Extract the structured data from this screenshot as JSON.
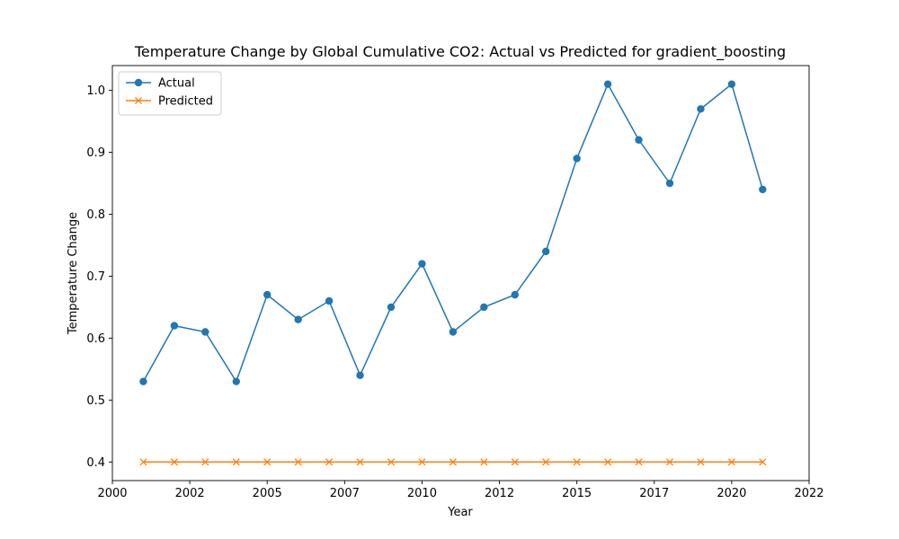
{
  "chart_data": {
    "type": "line",
    "title": "Temperature Change by Global Cumulative CO2: Actual vs Predicted for gradient_boosting",
    "xlabel": "Year",
    "ylabel": "Temperature Change",
    "xlim": [
      2000.0,
      2022.5
    ],
    "ylim": [
      0.37,
      1.04
    ],
    "x_ticks": [
      2000,
      2002.5,
      2005,
      2007.5,
      2010,
      2012.5,
      2015,
      2017.5,
      2020,
      2022.5
    ],
    "x_tick_labels": [
      "2000",
      "2002",
      "2005",
      "2007",
      "2010",
      "2012",
      "2015",
      "2017",
      "2020",
      "2022"
    ],
    "y_ticks": [
      0.4,
      0.5,
      0.6,
      0.7,
      0.8,
      0.9,
      1.0
    ],
    "y_tick_labels": [
      "0.4",
      "0.5",
      "0.6",
      "0.7",
      "0.8",
      "0.9",
      "1.0"
    ],
    "grid": false,
    "legend_position": "top-left",
    "x": [
      2001,
      2002,
      2003,
      2004,
      2005,
      2006,
      2007,
      2008,
      2009,
      2010,
      2011,
      2012,
      2013,
      2014,
      2015,
      2016,
      2017,
      2018,
      2019,
      2020,
      2021
    ],
    "series": [
      {
        "name": "Actual",
        "color": "#1f77b4",
        "marker": "circle",
        "values": [
          0.53,
          0.62,
          0.61,
          0.53,
          0.67,
          0.63,
          0.66,
          0.54,
          0.65,
          0.72,
          0.61,
          0.65,
          0.67,
          0.74,
          0.89,
          1.01,
          0.92,
          0.85,
          0.97,
          1.01,
          0.84
        ]
      },
      {
        "name": "Predicted",
        "color": "#ff7f0e",
        "marker": "x",
        "values": [
          0.4,
          0.4,
          0.4,
          0.4,
          0.4,
          0.4,
          0.4,
          0.4,
          0.4,
          0.4,
          0.4,
          0.4,
          0.4,
          0.4,
          0.4,
          0.4,
          0.4,
          0.4,
          0.4,
          0.4,
          0.4
        ]
      }
    ]
  }
}
